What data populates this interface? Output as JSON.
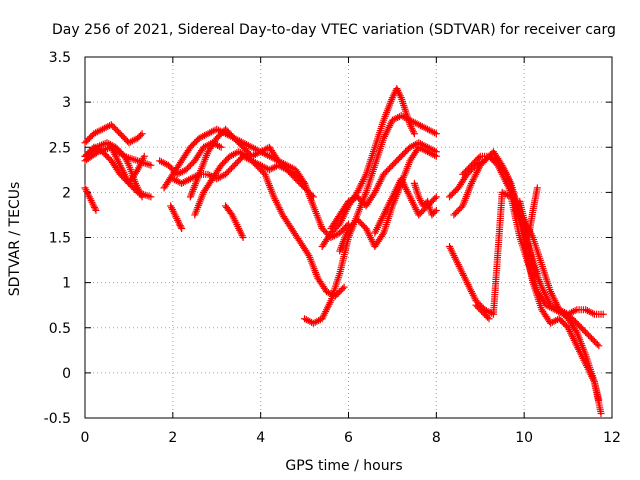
{
  "chart_data": {
    "type": "scatter",
    "title": "Day 256 of 2021, Sidereal Day-to-day VTEC variation (SDTVAR) for receiver carg",
    "xlabel": "GPS time / hours",
    "ylabel": "SDTVAR / TECUs",
    "xlim": [
      0,
      12
    ],
    "ylim": [
      -0.5,
      3.5
    ],
    "xticks": [
      0,
      2,
      4,
      6,
      8,
      10,
      12
    ],
    "yticks": [
      -0.5,
      0,
      0.5,
      1,
      1.5,
      2,
      2.5,
      3,
      3.5
    ],
    "xtick_labels": [
      "0",
      "2",
      "4",
      "6",
      "8",
      "10",
      "12"
    ],
    "ytick_labels": [
      "-0.5",
      "0",
      "0.5",
      "1",
      "1.5",
      "2",
      "2.5",
      "3",
      "3.5"
    ],
    "grid": true,
    "marker": "+",
    "color": "#ff0000",
    "series": [
      {
        "name": "s1",
        "x": [
          0.0,
          0.3,
          0.6,
          0.9,
          1.2,
          1.5
        ],
        "y": [
          2.35,
          2.45,
          2.5,
          2.4,
          2.35,
          2.3
        ]
      },
      {
        "name": "s2",
        "x": [
          0.0,
          0.2,
          0.4,
          0.6,
          0.8,
          1.0,
          1.2,
          1.3
        ],
        "y": [
          2.55,
          2.65,
          2.7,
          2.75,
          2.65,
          2.55,
          2.6,
          2.65
        ]
      },
      {
        "name": "s3",
        "x": [
          0.0,
          0.2,
          0.4,
          0.6,
          0.8,
          1.0,
          1.2,
          1.5
        ],
        "y": [
          2.4,
          2.5,
          2.45,
          2.35,
          2.2,
          2.1,
          2.0,
          1.95
        ]
      },
      {
        "name": "s4",
        "x": [
          0.0,
          0.25,
          0.5,
          0.7,
          0.9,
          1.0,
          1.15,
          1.3
        ],
        "y": [
          2.4,
          2.5,
          2.55,
          2.5,
          2.4,
          2.3,
          2.1,
          1.95
        ]
      },
      {
        "name": "s5",
        "x": [
          0.6,
          0.8,
          1.0,
          1.2,
          1.35
        ],
        "y": [
          2.5,
          2.3,
          2.1,
          2.25,
          2.4
        ]
      },
      {
        "name": "s6",
        "x": [
          0.0,
          0.1,
          0.2,
          0.25
        ],
        "y": [
          2.05,
          1.95,
          1.85,
          1.8
        ]
      },
      {
        "name": "s7",
        "x": [
          1.7,
          1.9,
          2.1,
          2.3,
          2.5,
          2.7,
          2.9,
          3.1
        ],
        "y": [
          2.35,
          2.3,
          2.2,
          2.25,
          2.35,
          2.5,
          2.55,
          2.5
        ]
      },
      {
        "name": "s8",
        "x": [
          1.8,
          2.0,
          2.2,
          2.4,
          2.6,
          2.8,
          3.0,
          3.2,
          3.4,
          3.6,
          3.8,
          4.0,
          4.2,
          4.4,
          4.6,
          4.8,
          5.0,
          5.2
        ],
        "y": [
          2.05,
          2.2,
          2.35,
          2.5,
          2.6,
          2.65,
          2.7,
          2.65,
          2.6,
          2.55,
          2.5,
          2.45,
          2.4,
          2.35,
          2.25,
          2.15,
          2.05,
          1.95
        ]
      },
      {
        "name": "s9",
        "x": [
          2.0,
          2.2,
          2.4,
          2.6,
          2.8,
          3.0,
          3.2,
          3.4,
          3.6,
          3.8,
          4.0,
          4.2,
          4.4,
          4.6,
          4.8,
          5.0
        ],
        "y": [
          2.15,
          2.1,
          2.15,
          2.2,
          2.2,
          2.15,
          2.2,
          2.3,
          2.4,
          2.35,
          2.3,
          2.25,
          2.3,
          2.25,
          2.2,
          2.1
        ]
      },
      {
        "name": "s10",
        "x": [
          2.4,
          2.6,
          2.8,
          3.0,
          3.2,
          3.4,
          3.6,
          3.8,
          4.0,
          4.2,
          4.4,
          4.6,
          4.8,
          5.0,
          5.2,
          5.4,
          5.6,
          5.8,
          6.0
        ],
        "y": [
          1.95,
          2.2,
          2.45,
          2.6,
          2.7,
          2.6,
          2.5,
          2.4,
          2.45,
          2.5,
          2.35,
          2.3,
          2.25,
          2.1,
          1.85,
          1.6,
          1.5,
          1.55,
          1.65
        ]
      },
      {
        "name": "s11",
        "x": [
          2.5,
          2.7,
          2.9,
          3.1,
          3.3,
          3.5,
          3.7,
          3.9,
          4.1,
          4.3,
          4.5,
          4.7,
          4.9,
          5.1,
          5.3,
          5.5,
          5.7,
          5.9
        ],
        "y": [
          1.75,
          2.0,
          2.15,
          2.3,
          2.4,
          2.45,
          2.4,
          2.3,
          2.2,
          1.95,
          1.75,
          1.6,
          1.45,
          1.3,
          1.05,
          0.9,
          0.85,
          0.95
        ]
      },
      {
        "name": "s12",
        "x": [
          3.2,
          3.35,
          3.5,
          3.6
        ],
        "y": [
          1.85,
          1.75,
          1.6,
          1.5
        ]
      },
      {
        "name": "s13",
        "x": [
          1.95,
          2.05,
          2.15,
          2.2
        ],
        "y": [
          1.85,
          1.75,
          1.65,
          1.6
        ]
      },
      {
        "name": "s14",
        "x": [
          5.0,
          5.2,
          5.4,
          5.6,
          5.8,
          6.0,
          6.2,
          6.4,
          6.6,
          6.8,
          7.0,
          7.2,
          7.4,
          7.6,
          7.8,
          8.0
        ],
        "y": [
          0.6,
          0.55,
          0.6,
          0.8,
          1.1,
          1.5,
          1.75,
          2.0,
          2.3,
          2.6,
          2.8,
          2.85,
          2.8,
          2.75,
          2.7,
          2.65
        ]
      },
      {
        "name": "s15",
        "x": [
          5.4,
          5.6,
          5.8,
          6.0,
          6.2,
          6.4,
          6.6,
          6.8,
          7.0,
          7.1,
          7.2,
          7.3,
          7.4,
          7.5
        ],
        "y": [
          1.4,
          1.55,
          1.65,
          1.85,
          2.0,
          2.2,
          2.5,
          2.8,
          3.05,
          3.15,
          3.05,
          2.9,
          2.75,
          2.65
        ]
      },
      {
        "name": "s16",
        "x": [
          5.6,
          5.8,
          6.0,
          6.2,
          6.4,
          6.6,
          6.8,
          7.0,
          7.2,
          7.4,
          7.6,
          7.8,
          8.0
        ],
        "y": [
          1.6,
          1.75,
          1.9,
          1.95,
          1.85,
          2.0,
          2.2,
          2.3,
          2.4,
          2.5,
          2.55,
          2.5,
          2.45
        ]
      },
      {
        "name": "s17",
        "x": [
          5.8,
          6.0,
          6.2,
          6.4,
          6.6,
          6.8,
          7.0,
          7.2,
          7.4,
          7.6,
          7.8,
          8.0
        ],
        "y": [
          1.35,
          1.6,
          1.7,
          1.6,
          1.4,
          1.55,
          1.85,
          2.1,
          2.35,
          2.5,
          2.45,
          2.4
        ]
      },
      {
        "name": "s18",
        "x": [
          6.6,
          6.8,
          7.0,
          7.2,
          7.4,
          7.6,
          7.8,
          8.0
        ],
        "y": [
          1.55,
          1.75,
          1.95,
          2.15,
          1.95,
          1.75,
          1.85,
          1.95
        ]
      },
      {
        "name": "s19",
        "x": [
          7.5,
          7.6,
          7.7,
          7.8,
          7.9,
          8.0
        ],
        "y": [
          2.1,
          1.95,
          1.85,
          1.9,
          1.75,
          1.8
        ]
      },
      {
        "name": "s20",
        "x": [
          8.3,
          8.5,
          8.7,
          8.9,
          9.1,
          9.3,
          9.5,
          9.7,
          9.9,
          10.1,
          10.3,
          10.5,
          10.7,
          10.9,
          11.1,
          11.3,
          11.5,
          11.7
        ],
        "y": [
          1.4,
          1.2,
          1.0,
          0.8,
          0.7,
          0.65,
          2.0,
          1.95,
          1.5,
          1.2,
          0.9,
          0.75,
          0.7,
          0.65,
          0.6,
          0.5,
          0.4,
          0.3
        ]
      },
      {
        "name": "s21",
        "x": [
          8.3,
          8.5,
          8.7,
          8.9,
          9.1,
          9.3,
          9.5,
          9.7,
          9.9,
          10.1,
          10.3
        ],
        "y": [
          1.95,
          2.05,
          2.2,
          2.3,
          2.35,
          2.45,
          2.3,
          2.1,
          1.75,
          1.4,
          1.1
        ]
      },
      {
        "name": "s22",
        "x": [
          8.4,
          8.6,
          8.8,
          9.0,
          9.2,
          9.4,
          9.6,
          9.8,
          10.0,
          10.2,
          10.4,
          10.6,
          10.8,
          11.0,
          11.2,
          11.4,
          11.6,
          11.75
        ],
        "y": [
          1.75,
          1.85,
          2.1,
          2.3,
          2.4,
          2.35,
          2.2,
          1.9,
          1.6,
          1.2,
          0.95,
          0.75,
          0.7,
          0.6,
          0.45,
          0.2,
          -0.1,
          -0.45
        ]
      },
      {
        "name": "s23",
        "x": [
          8.6,
          8.8,
          9.0,
          9.2,
          9.4,
          9.6,
          9.8,
          10.0,
          10.2,
          10.4,
          10.6,
          10.8,
          11.0,
          11.2,
          11.4,
          11.6,
          11.7
        ],
        "y": [
          2.2,
          2.3,
          2.4,
          2.4,
          2.3,
          2.1,
          1.9,
          1.45,
          1.0,
          0.7,
          0.55,
          0.6,
          0.5,
          0.3,
          0.1,
          -0.1,
          -0.3
        ]
      },
      {
        "name": "s24",
        "x": [
          9.8,
          10.0,
          10.2,
          10.4,
          10.6,
          10.8,
          11.0,
          11.2,
          11.4,
          11.6,
          11.8
        ],
        "y": [
          1.8,
          1.7,
          1.5,
          1.2,
          0.9,
          0.7,
          0.65,
          0.7,
          0.7,
          0.65,
          0.65
        ]
      },
      {
        "name": "s25",
        "x": [
          9.9,
          10.0,
          10.1,
          10.2,
          10.3
        ],
        "y": [
          1.9,
          1.7,
          1.5,
          1.8,
          2.05
        ]
      },
      {
        "name": "s26",
        "x": [
          8.9,
          9.0,
          9.1,
          9.2
        ],
        "y": [
          0.75,
          0.7,
          0.65,
          0.6
        ]
      }
    ]
  }
}
